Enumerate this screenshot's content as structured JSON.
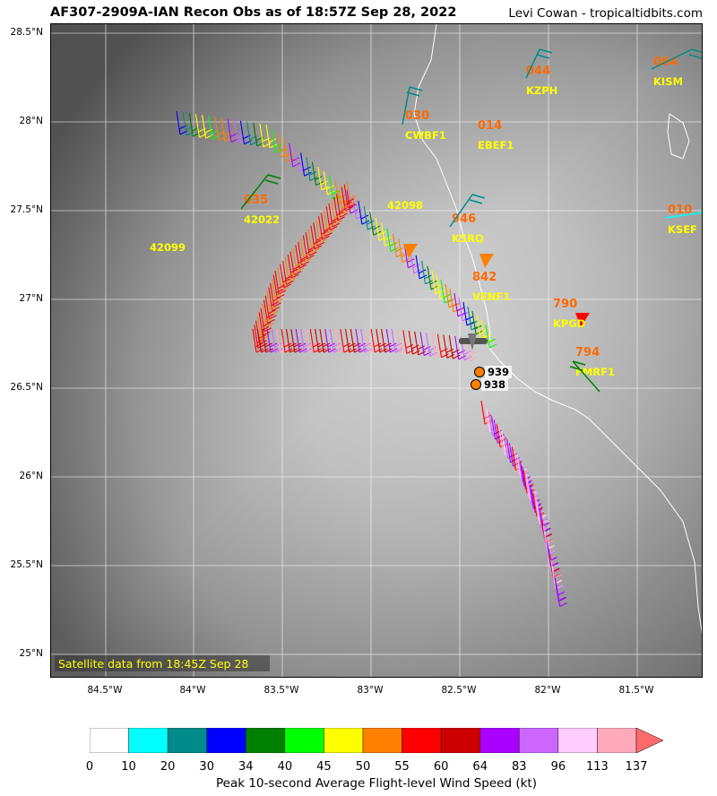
{
  "header": {
    "title": "AF307-2909A-IAN Recon Obs as of 18:57Z Sep 28, 2022",
    "credit": "Levi Cowan - tropicaltidbits.com"
  },
  "map": {
    "lat_labels": [
      "28.5°N",
      "28°N",
      "27.5°N",
      "27°N",
      "26.5°N",
      "26°N",
      "25.5°N",
      "25°N"
    ],
    "lon_labels": [
      "84.5°W",
      "84°W",
      "83.5°W",
      "83°W",
      "82.5°W",
      "82°W",
      "81.5°W"
    ],
    "satellite_note": "Satellite data from 18:45Z Sep 28",
    "pressure_obs": [
      "939",
      "938"
    ],
    "station_obs": [
      {
        "value": "044",
        "id": "KZPH"
      },
      {
        "value": "064",
        "id": "KISM"
      },
      {
        "value": "030",
        "id": "CWBF1"
      },
      {
        "value": "014",
        "id": "EBEF1"
      },
      {
        "value": "035",
        "id": "42022"
      },
      {
        "value": "946",
        "id": "KSRQ"
      },
      {
        "value": "010",
        "id": "KSEF"
      },
      {
        "value": "842",
        "id": "VENF1"
      },
      {
        "value": "790",
        "id": "KPGD"
      },
      {
        "value": "794",
        "id": "FMRF1"
      }
    ],
    "buoys": [
      "42098",
      "42099"
    ],
    "colors": {
      "station_value": "#ff6a00",
      "station_id": "#ffff00",
      "land_outline": "#ffffff",
      "grid": "#ffffff"
    }
  },
  "colorbar": {
    "title": "Peak 10-second Average Flight-level Wind Speed (kt)",
    "ticks": [
      "0",
      "10",
      "20",
      "30",
      "34",
      "40",
      "45",
      "50",
      "55",
      "60",
      "64",
      "83",
      "96",
      "113",
      "137"
    ],
    "colors": [
      "#ffffff",
      "#00ffff",
      "#008b8b",
      "#0000ff",
      "#008000",
      "#00ff00",
      "#ffff00",
      "#ff7f00",
      "#ff0000",
      "#cc0000",
      "#aa00ff",
      "#cc66ff",
      "#ffccff",
      "#ffaabb"
    ],
    "extend_color": "#ff6b6b"
  }
}
